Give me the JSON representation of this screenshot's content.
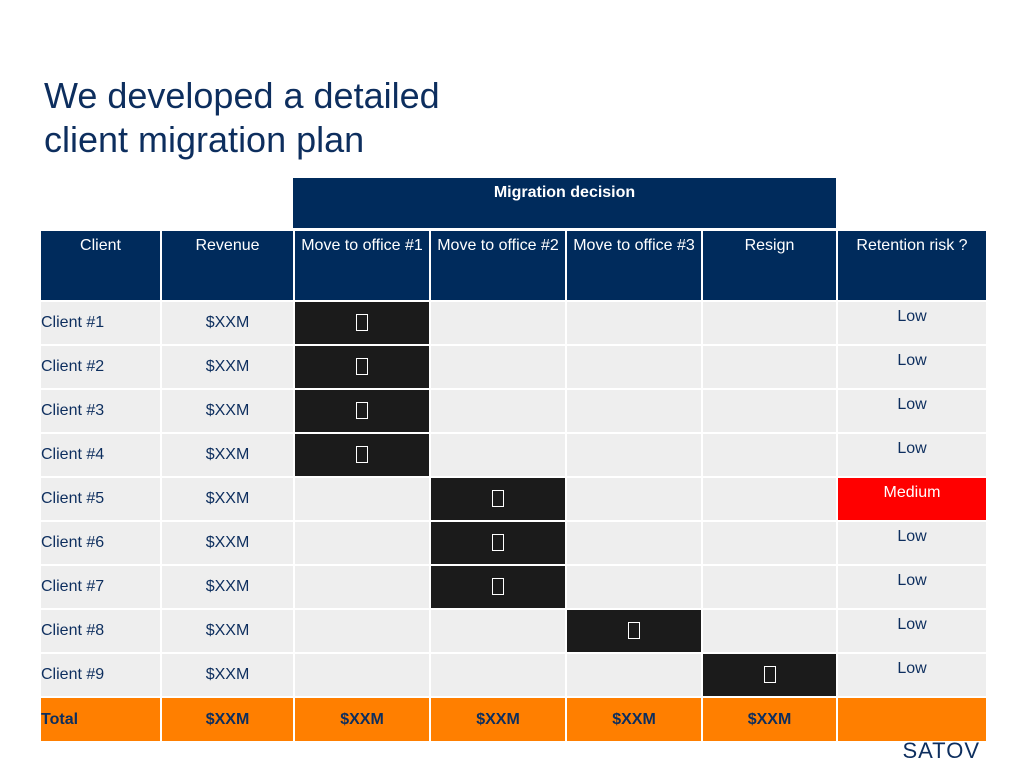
{
  "title": {
    "line1": "We developed a detailed",
    "line2": "client migration plan"
  },
  "header_band": "Migration decision",
  "columns": [
    "Client",
    "Revenue",
    "Move to office #1",
    "Move to office #2",
    "Move to office #3",
    "Resign",
    "Retention risk ?"
  ],
  "rows": [
    {
      "client": "Client #1",
      "revenue": "$XXM",
      "decision": "Move to office #1",
      "risk": "Low"
    },
    {
      "client": "Client #2",
      "revenue": "$XXM",
      "decision": "Move to office #1",
      "risk": "Low"
    },
    {
      "client": "Client #3",
      "revenue": "$XXM",
      "decision": "Move to office #1",
      "risk": "Low"
    },
    {
      "client": "Client #4",
      "revenue": "$XXM",
      "decision": "Move to office #1",
      "risk": "Low"
    },
    {
      "client": "Client #5",
      "revenue": "$XXM",
      "decision": "Move to office #2",
      "risk": "Medium"
    },
    {
      "client": "Client #6",
      "revenue": "$XXM",
      "decision": "Move to office #2",
      "risk": "Low"
    },
    {
      "client": "Client #7",
      "revenue": "$XXM",
      "decision": "Move to office #2",
      "risk": "Low"
    },
    {
      "client": "Client #8",
      "revenue": "$XXM",
      "decision": "Move to office #3",
      "risk": "Low"
    },
    {
      "client": "Client #9",
      "revenue": "$XXM",
      "decision": "Resign",
      "risk": "Low"
    }
  ],
  "total": {
    "label": "Total",
    "revenue": "$XXM",
    "office1": "$XXM",
    "office2": "$XXM",
    "office3": "$XXM",
    "resign": "$XXM"
  },
  "logo": "SATOV",
  "colors": {
    "navy": "#002b5c",
    "filled_cell": "#1b1b1b",
    "risk_medium": "#ff0000",
    "total_row": "#ff7f00"
  },
  "icons": {
    "decision_marker": "checkbox-icon"
  }
}
